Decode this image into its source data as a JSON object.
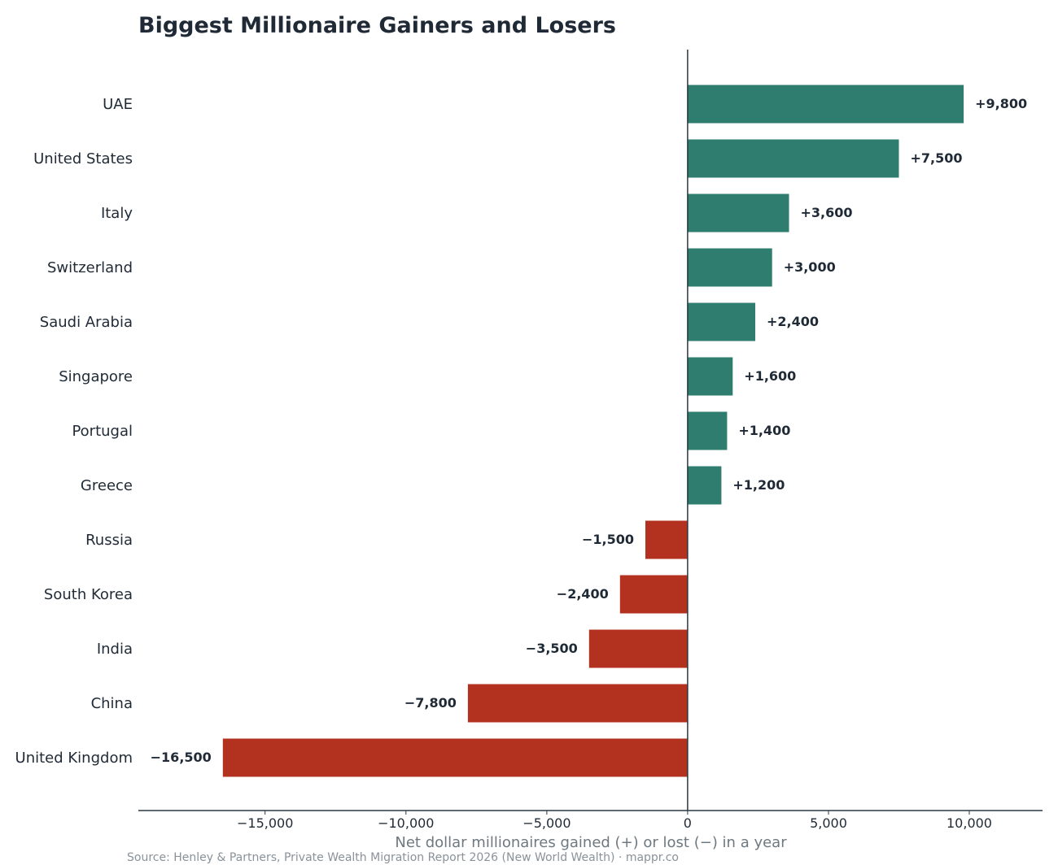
{
  "chart_data": {
    "type": "bar",
    "orientation": "horizontal",
    "title": "Biggest Millionaire Gainers and Losers",
    "xlabel": "Net dollar millionaires gained (+) or lost (−) in a year",
    "ylabel": "",
    "source": "Source: Henley & Partners, Private Wealth Migration Report 2026 (New World Wealth) · mappr.co",
    "categories": [
      "UAE",
      "United States",
      "Italy",
      "Switzerland",
      "Saudi Arabia",
      "Singapore",
      "Portugal",
      "Greece",
      "Russia",
      "South Korea",
      "India",
      "China",
      "United Kingdom"
    ],
    "values": [
      9800,
      7500,
      3600,
      3000,
      2400,
      1600,
      1400,
      1200,
      -1500,
      -2400,
      -3500,
      -7800,
      -16500
    ],
    "value_labels": [
      "+9,800",
      "+7,500",
      "+3,600",
      "+3,000",
      "+2,400",
      "+1,600",
      "+1,400",
      "+1,200",
      "−1,500",
      "−2,400",
      "−3,500",
      "−7,800",
      "−16,500"
    ],
    "xlim": [
      -19500,
      12600
    ],
    "xticks": [
      -15000,
      -10000,
      -5000,
      0,
      5000,
      10000
    ],
    "xtick_labels": [
      "−15,000",
      "−10,000",
      "−5,000",
      "0",
      "5,000",
      "10,000"
    ],
    "colors": {
      "positive": "#2e7d6e",
      "negative": "#b3321f",
      "axis": "#2b3640",
      "text": "#1f2a36"
    },
    "grid": false,
    "legend": "none"
  }
}
